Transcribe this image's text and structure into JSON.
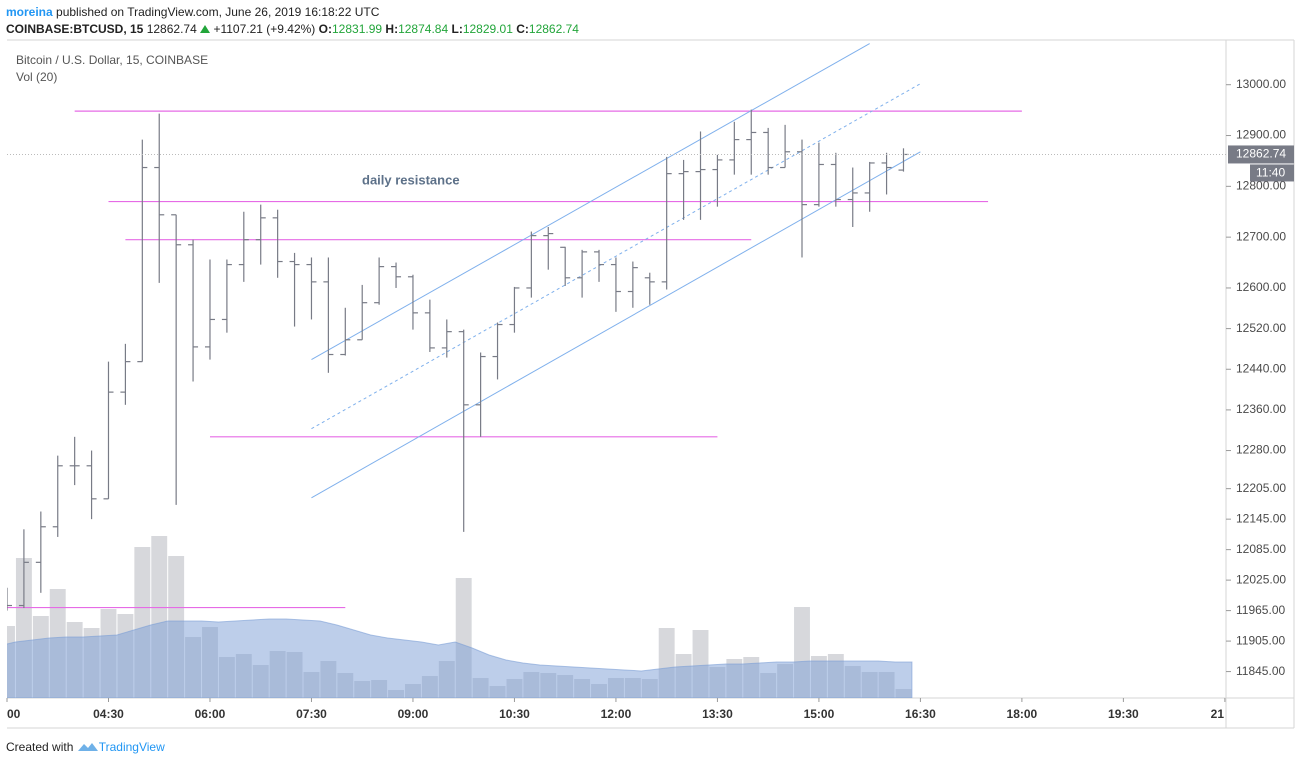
{
  "header": {
    "user": "moreina",
    "published": "published on TradingView.com, June 26, 2019 16:18:22 UTC",
    "symbol": "COINBASE:BTCUSD, 15",
    "change": "+1107.21 (+9.42%)",
    "ohlc_labels": [
      "O:",
      "H:",
      "L:",
      "C:"
    ]
  },
  "chart_data": {
    "type": "ohlc",
    "title": "Bitcoin / U.S. Dollar, 15, COINBASE",
    "volume_label": "Vol (20)",
    "countdown": "11:40",
    "annotation": "daily resistance",
    "bar_color": "#787b86",
    "volume_color": "#c9cbd0",
    "volume_ma_color": "#7c9ed6",
    "hline_color": "#e66be6",
    "trendline_color": "#7fb0ec",
    "x": [
      180,
      195,
      210,
      225,
      240,
      255,
      270,
      285,
      300,
      315,
      330,
      345,
      360,
      375,
      390,
      405,
      420,
      435,
      450,
      465,
      480,
      495,
      510,
      525,
      540,
      555,
      570,
      585,
      600,
      615,
      630,
      645,
      660,
      675,
      690,
      705,
      720,
      735,
      750,
      765,
      780,
      795,
      810,
      825,
      840,
      855,
      870,
      885,
      900,
      915,
      930,
      945,
      960,
      975
    ],
    "open": [
      11990,
      11975,
      12060,
      12130,
      12250,
      12250,
      12185,
      12395,
      12455,
      12837,
      12744,
      12685,
      12484,
      12538,
      12646,
      12695,
      12738,
      12652,
      12646,
      12612,
      12469,
      12498,
      12571,
      12642,
      12622,
      12551,
      12482,
      12514,
      12370,
      12465,
      12528,
      12600,
      12703,
      12680,
      12620,
      12671,
      12646,
      12593,
      12620,
      12612,
      12825,
      12829,
      12833,
      12852,
      12892,
      12906,
      12837,
      12868,
      12764,
      12843,
      12774,
      12787,
      12846,
      12831.99
    ],
    "high": [
      12010,
      12125,
      12160,
      12270,
      12307,
      12280,
      12455,
      12490,
      12892,
      12943,
      12744,
      12695,
      12656,
      12656,
      12750,
      12764,
      12754,
      12669,
      12660,
      12660,
      12561,
      12606,
      12660,
      12650,
      12626,
      12577,
      12538,
      12518,
      12473,
      12532,
      12602,
      12711,
      12720,
      12681,
      12675,
      12675,
      12660,
      12652,
      12630,
      12858,
      12852,
      12908,
      12862,
      12927,
      12951,
      12915,
      12921,
      12892,
      12886,
      12866,
      12837,
      12848,
      12866,
      12874.84
    ],
    "low": [
      11965,
      11970,
      12000,
      12110,
      12212,
      12145,
      12185,
      12370,
      12455,
      12610,
      12173,
      12416,
      12459,
      12512,
      12612,
      12646,
      12620,
      12524,
      12538,
      12433,
      12467,
      12498,
      12567,
      12600,
      12518,
      12474,
      12463,
      12120,
      12307,
      12420,
      12512,
      12581,
      12636,
      12604,
      12581,
      12612,
      12553,
      12561,
      12567,
      12597,
      12734,
      12734,
      12760,
      12823,
      12823,
      12823,
      12837,
      12660,
      12760,
      12760,
      12720,
      12750,
      12784,
      12829.01
    ],
    "close": [
      11975,
      12060,
      12130,
      12250,
      12250,
      12185,
      12395,
      12455,
      12837,
      12744,
      12685,
      12484,
      12538,
      12646,
      12695,
      12738,
      12652,
      12646,
      12612,
      12469,
      12498,
      12571,
      12642,
      12622,
      12551,
      12482,
      12514,
      12370,
      12465,
      12528,
      12600,
      12703,
      12707,
      12620,
      12671,
      12646,
      12593,
      12640,
      12612,
      12825,
      12829,
      12833,
      12852,
      12892,
      12906,
      12837,
      12868,
      12764,
      12843,
      12774,
      12787,
      12846,
      12837,
      12862.74
    ],
    "volume": [
      72,
      140,
      82,
      109,
      76,
      70,
      89,
      84,
      151,
      162,
      142,
      61,
      71,
      41,
      44,
      33,
      47,
      46,
      26,
      37,
      25,
      17,
      18,
      8,
      14,
      22,
      37,
      120,
      20,
      12,
      19,
      26,
      25,
      23,
      19,
      14,
      20,
      20,
      19,
      70,
      44,
      68,
      31,
      39,
      41,
      25,
      34,
      91,
      42,
      44,
      32,
      26,
      26,
      9
    ],
    "volume_ma": [
      52,
      56,
      58,
      60,
      61,
      61,
      62,
      63,
      68,
      73,
      77,
      77,
      77,
      76,
      77,
      78,
      79,
      79,
      78,
      77,
      73,
      68,
      63,
      60,
      58,
      56,
      53,
      56,
      50,
      43,
      38,
      35,
      33,
      32,
      31,
      30,
      29,
      28,
      27,
      29,
      31,
      32,
      33,
      34,
      34,
      35,
      36,
      36,
      37,
      37,
      37,
      37,
      37,
      36
    ],
    "hlines": [
      {
        "price": 12948,
        "start": 240,
        "end": 1080
      },
      {
        "price": 12770,
        "start": 270,
        "end": 1050
      },
      {
        "price": 12695,
        "start": 285,
        "end": 840
      },
      {
        "price": 12307,
        "start": 360,
        "end": 810
      },
      {
        "price": 11971,
        "start": 180,
        "end": 480
      }
    ],
    "trendlines": [
      {
        "style": "solid",
        "start": [
          450,
          12459
        ],
        "end": [
          945,
          13081
        ]
      },
      {
        "style": "dashed",
        "start": [
          450,
          12323
        ],
        "end": [
          990,
          13002
        ]
      },
      {
        "style": "solid",
        "start": [
          450,
          12187
        ],
        "end": [
          990,
          12868
        ]
      }
    ],
    "xlim": [
      180,
      1261
    ],
    "ylim": [
      11793,
      13088
    ],
    "xticks": [
      {
        "value": 180,
        "label": "00"
      },
      {
        "value": 270,
        "label": "04:30"
      },
      {
        "value": 360,
        "label": "06:00"
      },
      {
        "value": 450,
        "label": "07:30"
      },
      {
        "value": 540,
        "label": "09:00"
      },
      {
        "value": 630,
        "label": "10:30"
      },
      {
        "value": 720,
        "label": "12:00"
      },
      {
        "value": 810,
        "label": "13:30"
      },
      {
        "value": 900,
        "label": "15:00"
      },
      {
        "value": 990,
        "label": "16:30"
      },
      {
        "value": 1080,
        "label": "18:00"
      },
      {
        "value": 1170,
        "label": "19:30"
      },
      {
        "value": 1260,
        "label": "21"
      }
    ],
    "yticks": [
      {
        "value": 13000,
        "label": "13000.00"
      },
      {
        "value": 12900,
        "label": "12900.00"
      },
      {
        "value": 12800,
        "label": "12800.00"
      },
      {
        "value": 12700,
        "label": "12700.00"
      },
      {
        "value": 12600,
        "label": "12600.00"
      },
      {
        "value": 12520,
        "label": "12520.00"
      },
      {
        "value": 12440,
        "label": "12440.00"
      },
      {
        "value": 12360,
        "label": "12360.00"
      },
      {
        "value": 12280,
        "label": "12280.00"
      },
      {
        "value": 12205,
        "label": "12205.00"
      },
      {
        "value": 12145,
        "label": "12145.00"
      },
      {
        "value": 12085,
        "label": "12085.00"
      },
      {
        "value": 12025,
        "label": "12025.00"
      },
      {
        "value": 11965,
        "label": "11965.00"
      },
      {
        "value": 11905,
        "label": "11905.00"
      },
      {
        "value": 11845,
        "label": "11845.00"
      }
    ]
  },
  "footer": {
    "created": "Created with",
    "brand": "TradingView"
  }
}
